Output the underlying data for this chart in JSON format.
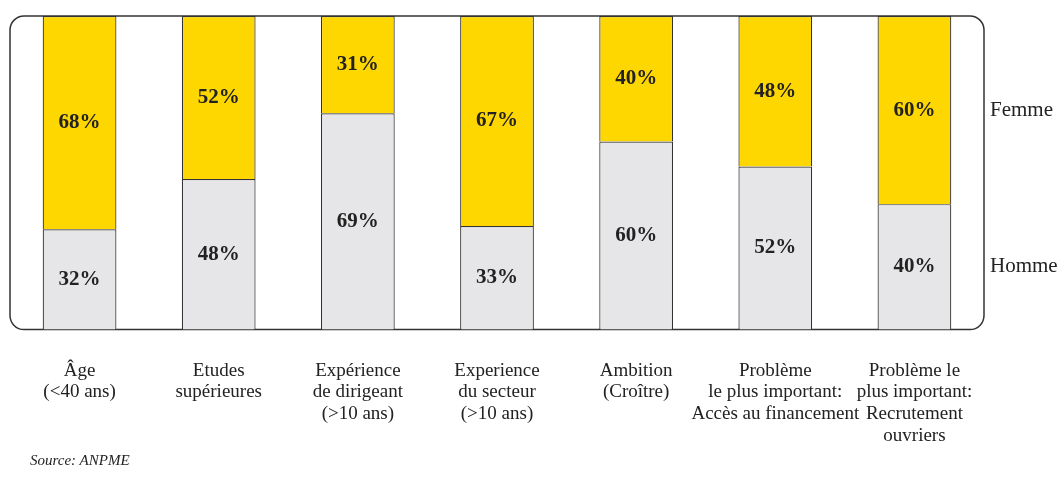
{
  "chart_data": {
    "type": "bar",
    "stacked": true,
    "categories": [
      "Âge\n(<40 ans)",
      "Etudes\nsupérieures",
      "Expérience\nde dirigeant\n(>10 ans)",
      "Experience\ndu secteur\n(>10 ans)",
      "Ambition\n(Croître)",
      "Problème\nle plus important:\nAccès au financement",
      "Problème le\nplus important:\nRecrutement\nouvriers"
    ],
    "series": [
      {
        "name": "Homme",
        "color": "#e6e6e8",
        "values": [
          32,
          48,
          69,
          33,
          60,
          52,
          40
        ],
        "value_labels": [
          "32%",
          "48%",
          "69%",
          "33%",
          "60%",
          "52%",
          "40%"
        ]
      },
      {
        "name": "Femme",
        "color": "#ffd700",
        "values": [
          68,
          52,
          31,
          67,
          40,
          48,
          60
        ],
        "value_labels": [
          "68%",
          "52%",
          "31%",
          "67%",
          "40%",
          "48%",
          "60%"
        ]
      }
    ],
    "ylim": [
      0,
      100
    ],
    "tick_labels": "x",
    "grid": false,
    "legend": false,
    "annotations": [
      "Source: ANPME"
    ]
  }
}
